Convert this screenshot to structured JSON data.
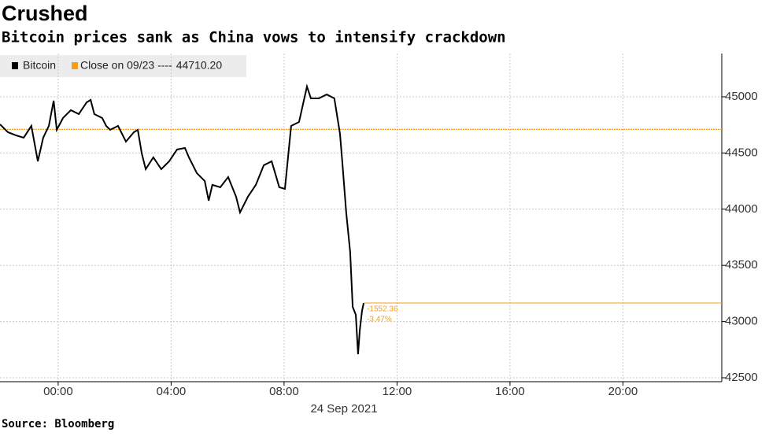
{
  "chart_data": {
    "type": "line",
    "title": "Crushed",
    "subtitle": "Bitcoin prices sank as China vows to intensify crackdown",
    "source": "Source: Bloomberg",
    "x_label": "24 Sep 2021",
    "x": [
      -2.06,
      -1.78,
      -1.5,
      -1.22,
      -0.95,
      -0.72,
      -0.53,
      -0.33,
      -0.16,
      -0.05,
      0.17,
      0.45,
      0.73,
      1.01,
      1.15,
      1.28,
      1.56,
      1.7,
      1.84,
      2.12,
      2.4,
      2.68,
      2.82,
      2.96,
      3.1,
      3.37,
      3.65,
      3.93,
      4.21,
      4.49,
      4.63,
      4.91,
      5.19,
      5.33,
      5.46,
      5.74,
      6.02,
      6.3,
      6.44,
      6.72,
      7.0,
      7.28,
      7.56,
      7.83,
      8.03,
      8.25,
      8.53,
      8.81,
      8.95,
      9.23,
      9.51,
      9.78,
      9.98,
      10.06,
      10.2,
      10.34,
      10.43,
      10.54,
      10.62,
      10.68,
      10.76,
      10.82
    ],
    "series": [
      {
        "name": "Bitcoin",
        "color": "#000000",
        "values": [
          44755,
          44685,
          44657,
          44636,
          44741,
          44426,
          44636,
          44741,
          44965,
          44706,
          44811,
          44881,
          44846,
          44951,
          44972,
          44846,
          44811,
          44741,
          44706,
          44741,
          44601,
          44685,
          44706,
          44496,
          44356,
          44461,
          44356,
          44426,
          44531,
          44545,
          44461,
          44321,
          44251,
          44076,
          44216,
          44195,
          44286,
          44111,
          43971,
          44111,
          44216,
          44391,
          44426,
          44195,
          44181,
          44741,
          44776,
          45091,
          44986,
          44986,
          45021,
          44986,
          44671,
          44426,
          43971,
          43620,
          43130,
          43060,
          42710,
          42920,
          43095,
          43165
        ]
      }
    ],
    "reference_line": {
      "name": "Close on 09/23 ----",
      "value": {
        "value": 44710.2,
        "label": "44710.20"
      },
      "color": "#f59e1b"
    },
    "annotations": [
      "-1552.36",
      "-3.47%"
    ],
    "xlim": [
      -2.06,
      23.5
    ],
    "xticks": [
      {
        "value": 0,
        "label": "00:00"
      },
      {
        "value": 4,
        "label": "04:00"
      },
      {
        "value": 8,
        "label": "08:00"
      },
      {
        "value": 12,
        "label": "12:00"
      },
      {
        "value": 16,
        "label": "16:00"
      },
      {
        "value": 20,
        "label": "20:00"
      }
    ],
    "ylim": [
      42465,
      45385
    ],
    "yticks": [
      42500,
      43000,
      43500,
      44000,
      44500,
      45000
    ],
    "grid": true
  }
}
